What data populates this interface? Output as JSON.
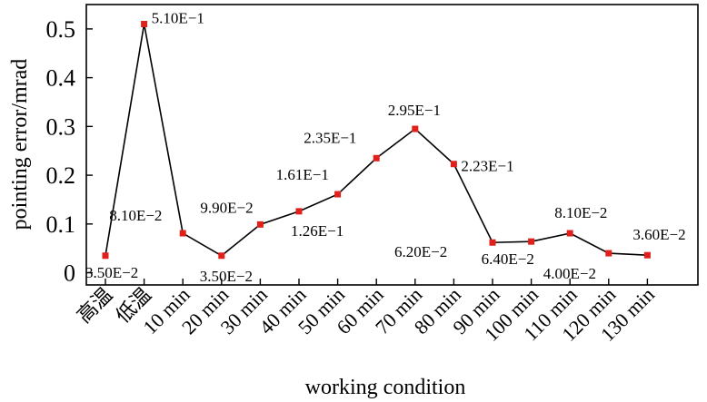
{
  "chart_data": {
    "type": "line",
    "title": "",
    "xlabel": "working condition",
    "ylabel": "pointing error/mrad",
    "categories": [
      "高温",
      "低温",
      "10 min",
      "20 min",
      "30 min",
      "40 min",
      "50 min",
      "60 min",
      "70 min",
      "80 min",
      "90 min",
      "100 min",
      "110 min",
      "120 min",
      "130 min"
    ],
    "series": [
      {
        "values": [
          0.035,
          0.51,
          0.081,
          0.035,
          0.099,
          0.126,
          0.161,
          0.235,
          0.295,
          0.223,
          0.062,
          0.064,
          0.081,
          0.04,
          0.036
        ],
        "labels": [
          "3.50E−2",
          "5.10E−1",
          "8.10E−2",
          "3.50E−2",
          "9.90E−2",
          "1.26E−1",
          "1.61E−1",
          "2.35E−1",
          "2.95E−1",
          "2.23E−1",
          "6.20E−2",
          "6.40E−2",
          "8.10E−2",
          "4.00E−2",
          "3.60E−2"
        ],
        "color": "#000000",
        "marker_color": "#e0201b"
      }
    ],
    "yticks": [
      0,
      0.1,
      0.2,
      0.3,
      0.4,
      0.5
    ],
    "ytick_labels": [
      "0",
      "0.1",
      "0.2",
      "0.3",
      "0.4",
      "0.5"
    ],
    "ylim": [
      -0.025,
      0.55
    ],
    "grid": false,
    "legend": "none"
  }
}
